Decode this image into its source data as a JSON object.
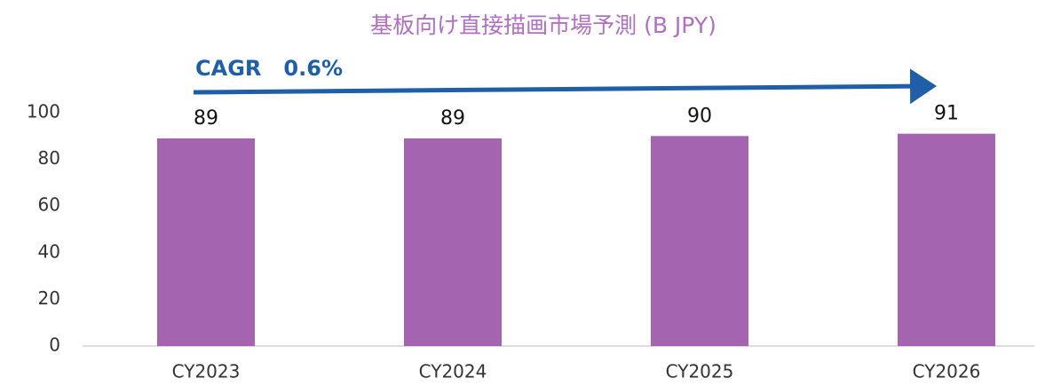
{
  "chart_data": {
    "type": "bar",
    "title": "基板向け直接描画市場予測 (B JPY)",
    "annotation": "CAGR   0.6%",
    "categories": [
      "CY2023",
      "CY2024",
      "CY2025",
      "CY2026"
    ],
    "values": [
      89,
      89,
      90,
      91
    ],
    "color": "#a464b0",
    "ylim": [
      0,
      100
    ],
    "yticks": [
      0,
      20,
      40,
      60,
      80,
      100
    ],
    "grid": false
  }
}
